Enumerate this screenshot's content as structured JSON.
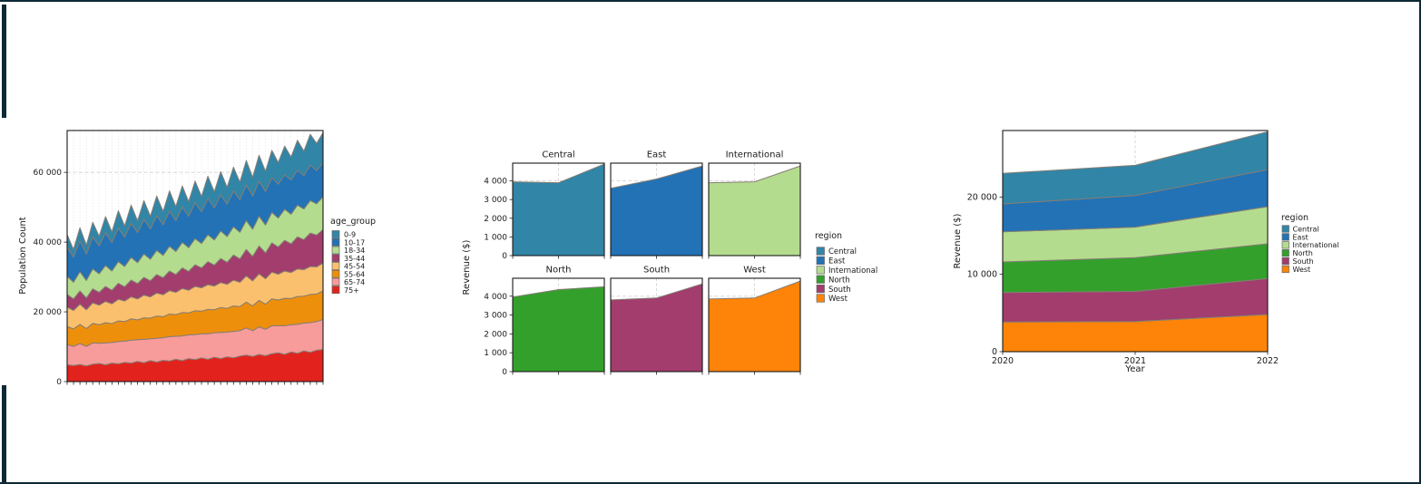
{
  "frame": {
    "accent_color": "#0d2936",
    "background": "#ffffff"
  },
  "chart_data": [
    {
      "type": "area",
      "stacked": true,
      "title": "",
      "xlabel": "",
      "ylabel": "Population Count",
      "legend_title": "age_group",
      "legend_position": "right",
      "grid": "dotted vertical line at every x point; dashed horizontal lines at y ticks, drawn beneath areas",
      "x_axis": {
        "labels_visible": false,
        "tick_count": 41
      },
      "ylim": [
        0,
        72000
      ],
      "yticks": [
        {
          "v": 0,
          "label": "0"
        },
        {
          "v": 20000,
          "label": "20 000"
        },
        {
          "v": 40000,
          "label": "40 000"
        },
        {
          "v": 60000,
          "label": "60 000"
        }
      ],
      "stack_note": "bands stacked bottom-to-top in reverse of listed order (75+ at bottom, 0-9 on top)",
      "series": [
        {
          "name": "0-9",
          "color": "#3185a7",
          "values": [
            3500,
            2200,
            3800,
            2500,
            4200,
            2800,
            4600,
            3000,
            5000,
            3200,
            5200,
            3400,
            5400,
            3600,
            5600,
            3800,
            5800,
            4000,
            6000,
            4200,
            6200,
            4400,
            6400,
            4600,
            6600,
            4800,
            6800,
            5000,
            7000,
            5400,
            7400,
            5800,
            7800,
            6200,
            8200,
            6600,
            8600,
            7000,
            8800,
            7800,
            8600
          ]
        },
        {
          "name": "10-17",
          "color": "#2272b5",
          "values": [
            8400,
            7200,
            8800,
            7600,
            9200,
            8000,
            9400,
            8200,
            9600,
            8400,
            9800,
            8600,
            9900,
            8700,
            10000,
            8800,
            10100,
            8900,
            10200,
            9000,
            10300,
            9100,
            10400,
            9200,
            10400,
            9300,
            10300,
            9400,
            10200,
            9500,
            10100,
            9600,
            10000,
            9700,
            9900,
            9800,
            10000,
            9600,
            10200,
            9500,
            9800
          ]
        },
        {
          "name": "18-34",
          "color": "#b4dc8e",
          "values": [
            5200,
            4800,
            5500,
            5000,
            5700,
            5300,
            6000,
            5500,
            6200,
            5800,
            6500,
            6000,
            6700,
            6200,
            6900,
            6400,
            7100,
            6600,
            7300,
            6800,
            7500,
            7000,
            7700,
            7200,
            7900,
            7400,
            8100,
            7600,
            8300,
            7800,
            8500,
            8000,
            8700,
            8300,
            8900,
            8500,
            9100,
            8800,
            9300,
            9000,
            9400
          ]
        },
        {
          "name": "35-44",
          "color": "#a23d6d",
          "values": [
            3600,
            3300,
            3800,
            3400,
            4000,
            3700,
            4300,
            3900,
            4600,
            4100,
            4800,
            4400,
            5100,
            4600,
            5300,
            4900,
            5600,
            5100,
            5900,
            5400,
            6200,
            5700,
            6600,
            6000,
            6900,
            6300,
            7200,
            6700,
            7600,
            7000,
            8000,
            7400,
            8400,
            7800,
            8800,
            8200,
            9200,
            8600,
            9600,
            9100,
            9600
          ]
        },
        {
          "name": "45-54",
          "color": "#fbc06d",
          "values": [
            5600,
            5300,
            5800,
            5400,
            5900,
            5600,
            6100,
            5700,
            6200,
            5900,
            6300,
            6000,
            6500,
            6100,
            6600,
            6300,
            6700,
            6400,
            6900,
            6500,
            7000,
            6700,
            7100,
            6800,
            7200,
            6900,
            7400,
            7000,
            7500,
            7200,
            7600,
            7300,
            7700,
            7400,
            7800,
            7500,
            7900,
            7600,
            8000,
            7800,
            8000
          ]
        },
        {
          "name": "55-64",
          "color": "#ee8f0c",
          "values": [
            5200,
            5000,
            5500,
            5100,
            5600,
            5300,
            5800,
            5400,
            5900,
            5600,
            6100,
            5700,
            6200,
            5900,
            6400,
            6000,
            6500,
            6200,
            6700,
            6300,
            6800,
            6500,
            7000,
            6600,
            7100,
            6800,
            7300,
            6900,
            7400,
            7100,
            7600,
            7200,
            7700,
            7400,
            7900,
            7500,
            8000,
            7700,
            8100,
            7900,
            8200
          ]
        },
        {
          "name": "65-74",
          "color": "#f89b9b",
          "values": [
            5800,
            5500,
            6000,
            5600,
            6100,
            5800,
            6300,
            5900,
            6400,
            6100,
            6600,
            6200,
            6700,
            6300,
            6800,
            6500,
            7000,
            6600,
            7100,
            6800,
            7200,
            6900,
            7300,
            7000,
            7500,
            7100,
            7600,
            7300,
            7800,
            7400,
            7900,
            7600,
            8000,
            7700,
            8200,
            7800,
            8300,
            8000,
            8500,
            8200,
            8600
          ]
        },
        {
          "name": "75+",
          "color": "#e2231d",
          "values": [
            4800,
            4600,
            4900,
            4500,
            5000,
            5200,
            4800,
            5300,
            5100,
            5500,
            5300,
            5800,
            5400,
            6000,
            5600,
            6100,
            5900,
            6400,
            6000,
            6600,
            6300,
            6800,
            6400,
            7000,
            6600,
            7100,
            6800,
            7300,
            7600,
            7200,
            7800,
            7400,
            8000,
            8300,
            7800,
            8500,
            8100,
            8800,
            8400,
            9000,
            9200
          ]
        }
      ]
    },
    {
      "type": "area",
      "faceted": true,
      "title": "",
      "xlabel": "",
      "ylabel": "Revenue ($)",
      "legend_title": "region",
      "legend_position": "right",
      "grid": "dashed gridlines beneath areas; vertical dashed line at 2021, horizontal dashed line at 4000 visible",
      "x": [
        2020,
        2021,
        2022
      ],
      "x_axis": {
        "labels_visible": false
      },
      "ylim": [
        0,
        4950
      ],
      "yticks": [
        {
          "v": 0,
          "label": "0"
        },
        {
          "v": 1000,
          "label": "1 000"
        },
        {
          "v": 2000,
          "label": "2 000"
        },
        {
          "v": 3000,
          "label": "3 000"
        },
        {
          "v": 4000,
          "label": "4 000"
        }
      ],
      "facet_layout": {
        "rows": 2,
        "cols": 3
      },
      "series": [
        {
          "name": "Central",
          "color": "#3185a7",
          "values": [
            3950,
            3900,
            4900
          ]
        },
        {
          "name": "East",
          "color": "#2272b5",
          "values": [
            3600,
            4100,
            4800
          ]
        },
        {
          "name": "International",
          "color": "#b4dc8e",
          "values": [
            3900,
            3950,
            4800
          ]
        },
        {
          "name": "North",
          "color": "#33a02c",
          "values": [
            3950,
            4350,
            4500
          ]
        },
        {
          "name": "South",
          "color": "#a23d6d",
          "values": [
            3800,
            3900,
            4650
          ]
        },
        {
          "name": "West",
          "color": "#fd8408",
          "values": [
            3850,
            3900,
            4800
          ]
        }
      ]
    },
    {
      "type": "area",
      "stacked": true,
      "title": "",
      "xlabel": "Year",
      "ylabel": "Revenue ($)",
      "legend_title": "region",
      "legend_position": "right",
      "grid": "dashed gridlines beneath areas; vertical dashed line at 2021 visible above stack",
      "x": [
        2020,
        2021,
        2022
      ],
      "xtick_labels": [
        "2020",
        "2021",
        "2022"
      ],
      "ylim": [
        0,
        28600
      ],
      "yticks": [
        {
          "v": 0,
          "label": "0"
        },
        {
          "v": 10000,
          "label": "10 000"
        },
        {
          "v": 20000,
          "label": "20 000"
        }
      ],
      "stack_note": "bands stacked bottom-to-top in reverse of listed order (West at bottom, Central on top)",
      "series": [
        {
          "name": "Central",
          "color": "#3185a7",
          "values": [
            3950,
            3900,
            4900
          ]
        },
        {
          "name": "East",
          "color": "#2272b5",
          "values": [
            3600,
            4100,
            4800
          ]
        },
        {
          "name": "International",
          "color": "#b4dc8e",
          "values": [
            3900,
            3950,
            4800
          ]
        },
        {
          "name": "North",
          "color": "#33a02c",
          "values": [
            3950,
            4350,
            4500
          ]
        },
        {
          "name": "South",
          "color": "#a23d6d",
          "values": [
            3800,
            3900,
            4650
          ]
        },
        {
          "name": "West",
          "color": "#fd8408",
          "values": [
            3850,
            3900,
            4800
          ]
        }
      ]
    }
  ]
}
